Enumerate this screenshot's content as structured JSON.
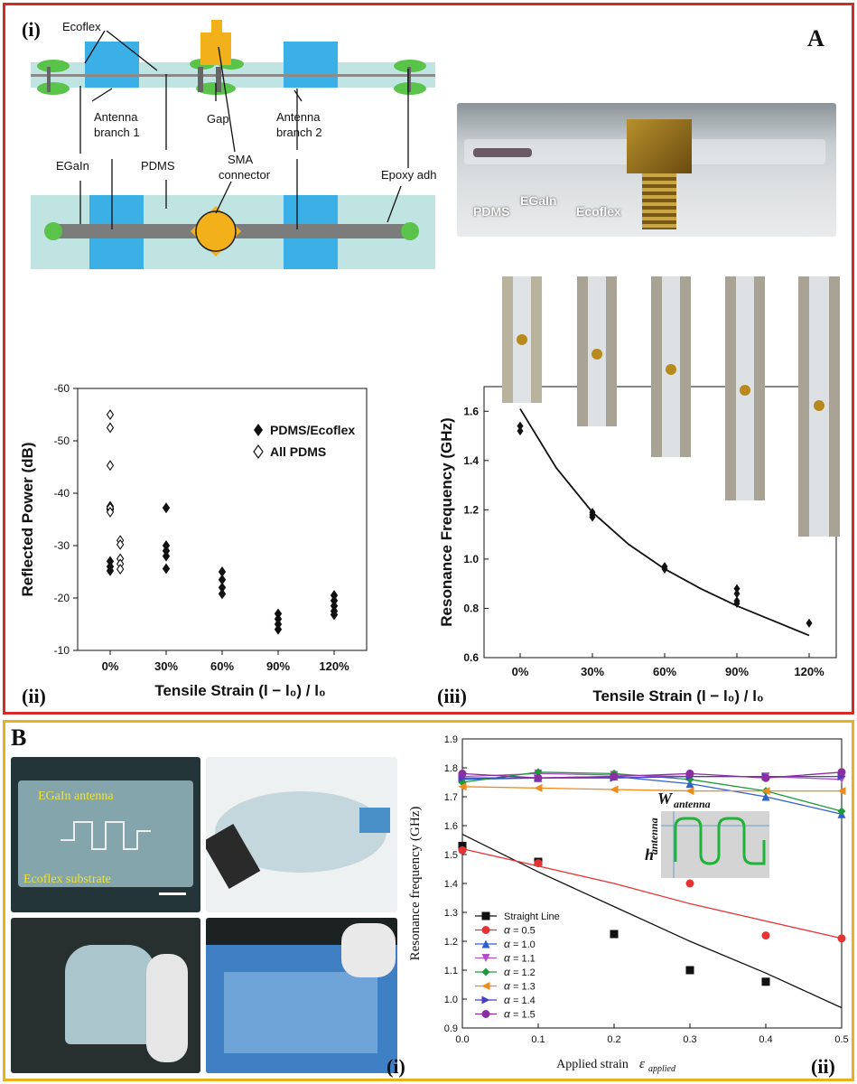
{
  "panelA": {
    "letter": "A",
    "sub_i": "(i)",
    "sub_ii": "(ii)",
    "sub_iii": "(iii)",
    "schematic": {
      "ecoflex": "Ecoflex",
      "antenna1_l1": "Antenna",
      "antenna1_l2": "branch 1",
      "gap": "Gap",
      "antenna2_l1": "Antenna",
      "antenna2_l2": "branch 2",
      "egain": "EGaIn",
      "pdms": "PDMS",
      "sma_l1": "SMA",
      "sma_l2": "connector",
      "epoxy": "Epoxy adh"
    },
    "photo_labels": {
      "pdms": "PDMS",
      "egain": "EGaIn",
      "ecoflex": "Ecoflex"
    },
    "colors": {
      "border": "#d42a2a",
      "pale": "#bfe4e2",
      "blue": "#3ab0e6",
      "green": "#59c34a",
      "gold": "#f2b01a",
      "grey": "#8a8a8a"
    }
  },
  "chart_ii": {
    "type": "scatter",
    "ylabel": "Reflected Power (dB)",
    "xlabel": "Tensile Strain (l − l₀) / l₀",
    "categories": [
      "0%",
      "30%",
      "60%",
      "90%",
      "120%"
    ],
    "yticks": [
      "-60",
      "-50",
      "-40",
      "-30",
      "-20",
      "-10"
    ],
    "ylim": [
      -60,
      -10
    ],
    "legend": [
      "PDMS/Ecoflex",
      "All PDMS"
    ],
    "series": [
      {
        "name": "PDMS/Ecoflex",
        "marker": "filled-diamond",
        "points": [
          [
            0,
            -37.5
          ],
          [
            0,
            -37
          ],
          [
            0,
            -36.8
          ],
          [
            0,
            -27
          ],
          [
            0,
            -26
          ],
          [
            0,
            -25.2
          ],
          [
            1,
            -37.2
          ],
          [
            1,
            -30
          ],
          [
            1,
            -29
          ],
          [
            1,
            -28
          ],
          [
            1,
            -25.6
          ],
          [
            2,
            -25
          ],
          [
            2,
            -23.5
          ],
          [
            2,
            -22
          ],
          [
            2,
            -20.8
          ],
          [
            3,
            -17
          ],
          [
            3,
            -16
          ],
          [
            3,
            -15
          ],
          [
            3,
            -14
          ],
          [
            4,
            -20.5
          ],
          [
            4,
            -19.5
          ],
          [
            4,
            -18.5
          ],
          [
            4,
            -17.5
          ],
          [
            4,
            -16.8
          ]
        ]
      },
      {
        "name": "All PDMS",
        "marker": "open-diamond",
        "points": [
          [
            0,
            -55
          ],
          [
            0,
            -52.5
          ],
          [
            0,
            -45.3
          ],
          [
            0,
            -37.2
          ],
          [
            0,
            -36.4
          ],
          [
            0.18,
            -31
          ],
          [
            0.18,
            -30.2
          ],
          [
            0.18,
            -27.5
          ],
          [
            0.18,
            -26.5
          ],
          [
            0.18,
            -25.5
          ]
        ]
      }
    ]
  },
  "chart_iii": {
    "type": "scatter",
    "ylabel": "Resonance Frequency (GHz)",
    "xlabel": "Tensile Strain (l − l₀) / l₀",
    "categories": [
      "0%",
      "30%",
      "60%",
      "90%",
      "120%"
    ],
    "yticks": [
      "0.6",
      "0.8",
      "1.0",
      "1.2",
      "1.4",
      "1.6"
    ],
    "ylim": [
      0.6,
      1.7
    ],
    "points": [
      [
        0,
        1.54
      ],
      [
        0,
        1.52
      ],
      [
        0.3,
        1.19
      ],
      [
        0.3,
        1.18
      ],
      [
        0.3,
        1.17
      ],
      [
        0.6,
        0.97
      ],
      [
        0.6,
        0.96
      ],
      [
        0.9,
        0.88
      ],
      [
        0.9,
        0.86
      ],
      [
        0.9,
        0.83
      ],
      [
        0.9,
        0.82
      ],
      [
        1.2,
        0.74
      ]
    ],
    "fit": [
      [
        0,
        1.61
      ],
      [
        0.15,
        1.37
      ],
      [
        0.3,
        1.19
      ],
      [
        0.45,
        1.06
      ],
      [
        0.6,
        0.96
      ],
      [
        0.75,
        0.88
      ],
      [
        0.9,
        0.81
      ],
      [
        1.05,
        0.75
      ],
      [
        1.2,
        0.69
      ]
    ]
  },
  "panelB": {
    "letter": "B",
    "sub_i": "(i)",
    "sub_ii": "(ii)",
    "photo_label_antenna": "EGaIn antenna",
    "photo_label_substrate": "Ecoflex substrate",
    "colors": {
      "border": "#e8b21a",
      "photo_label": "#f0e230",
      "bg_dark": "#24353a",
      "substrate": "#9cc2c8"
    }
  },
  "chart_Bii": {
    "type": "line",
    "ylabel": "Resonance frequency (GHz)",
    "xlabel": "Applied strain",
    "xlabel_symbol": "ε",
    "xlabel_sub": "applied",
    "xlim": [
      0,
      0.5
    ],
    "ylim": [
      0.9,
      1.9
    ],
    "xticks": [
      "0.0",
      "0.1",
      "0.2",
      "0.3",
      "0.4",
      "0.5"
    ],
    "yticks": [
      "0.9",
      "1.0",
      "1.1",
      "1.2",
      "1.3",
      "1.4",
      "1.5",
      "1.6",
      "1.7",
      "1.8",
      "1.9"
    ],
    "inset_w_label": "W",
    "inset_w_sub": "antenna",
    "inset_h_label": "h",
    "inset_h_sub": "antenna",
    "x": [
      0,
      0.1,
      0.2,
      0.3,
      0.4,
      0.5
    ],
    "series": [
      {
        "name": "Straight Line",
        "symbol": "",
        "color": "#111111",
        "marker": "square",
        "values": [
          1.53,
          1.475,
          1.225,
          1.1,
          1.06,
          null
        ],
        "fit": [
          1.57,
          1.44,
          1.32,
          1.2,
          1.09,
          0.97
        ]
      },
      {
        "name": "= 0.5",
        "symbol": "α",
        "color": "#e53333",
        "marker": "circle",
        "values": [
          1.515,
          1.47,
          null,
          1.4,
          1.22,
          1.21
        ],
        "fit": [
          1.52,
          1.46,
          1.4,
          1.33,
          1.27,
          1.21
        ]
      },
      {
        "name": "= 1.0",
        "symbol": "α",
        "color": "#2f5fd0",
        "marker": "triangle-up",
        "values": [
          1.76,
          1.765,
          1.77,
          1.745,
          1.7,
          1.64
        ],
        "fit": [
          1.76,
          1.765,
          1.77,
          1.745,
          1.7,
          1.64
        ]
      },
      {
        "name": "= 1.1",
        "symbol": "α",
        "color": "#b04fc8",
        "marker": "triangle-down",
        "values": [
          1.77,
          1.78,
          1.775,
          1.77,
          1.77,
          1.76
        ],
        "fit": [
          1.77,
          1.78,
          1.775,
          1.77,
          1.77,
          1.76
        ]
      },
      {
        "name": "= 1.2",
        "symbol": "α",
        "color": "#1f9a3a",
        "marker": "diamond",
        "values": [
          1.75,
          1.785,
          1.78,
          1.76,
          1.72,
          1.65
        ],
        "fit": [
          1.75,
          1.785,
          1.78,
          1.76,
          1.72,
          1.65
        ]
      },
      {
        "name": "= 1.3",
        "symbol": "α",
        "color": "#f08a1a",
        "marker": "triangle-left",
        "values": [
          1.735,
          1.73,
          1.725,
          1.72,
          1.72,
          1.72
        ],
        "fit": [
          1.735,
          1.73,
          1.725,
          1.72,
          1.72,
          1.72
        ]
      },
      {
        "name": "= 1.4",
        "symbol": "α",
        "color": "#4a3fc0",
        "marker": "triangle-right",
        "values": [
          1.765,
          1.765,
          1.765,
          1.77,
          1.77,
          1.77
        ],
        "fit": [
          1.765,
          1.765,
          1.765,
          1.77,
          1.77,
          1.77
        ]
      },
      {
        "name": "= 1.5",
        "symbol": "α",
        "color": "#8a2fa0",
        "marker": "circle",
        "values": [
          1.78,
          1.765,
          1.77,
          1.78,
          1.765,
          1.785
        ],
        "fit": [
          1.78,
          1.765,
          1.77,
          1.78,
          1.765,
          1.785
        ]
      }
    ]
  }
}
